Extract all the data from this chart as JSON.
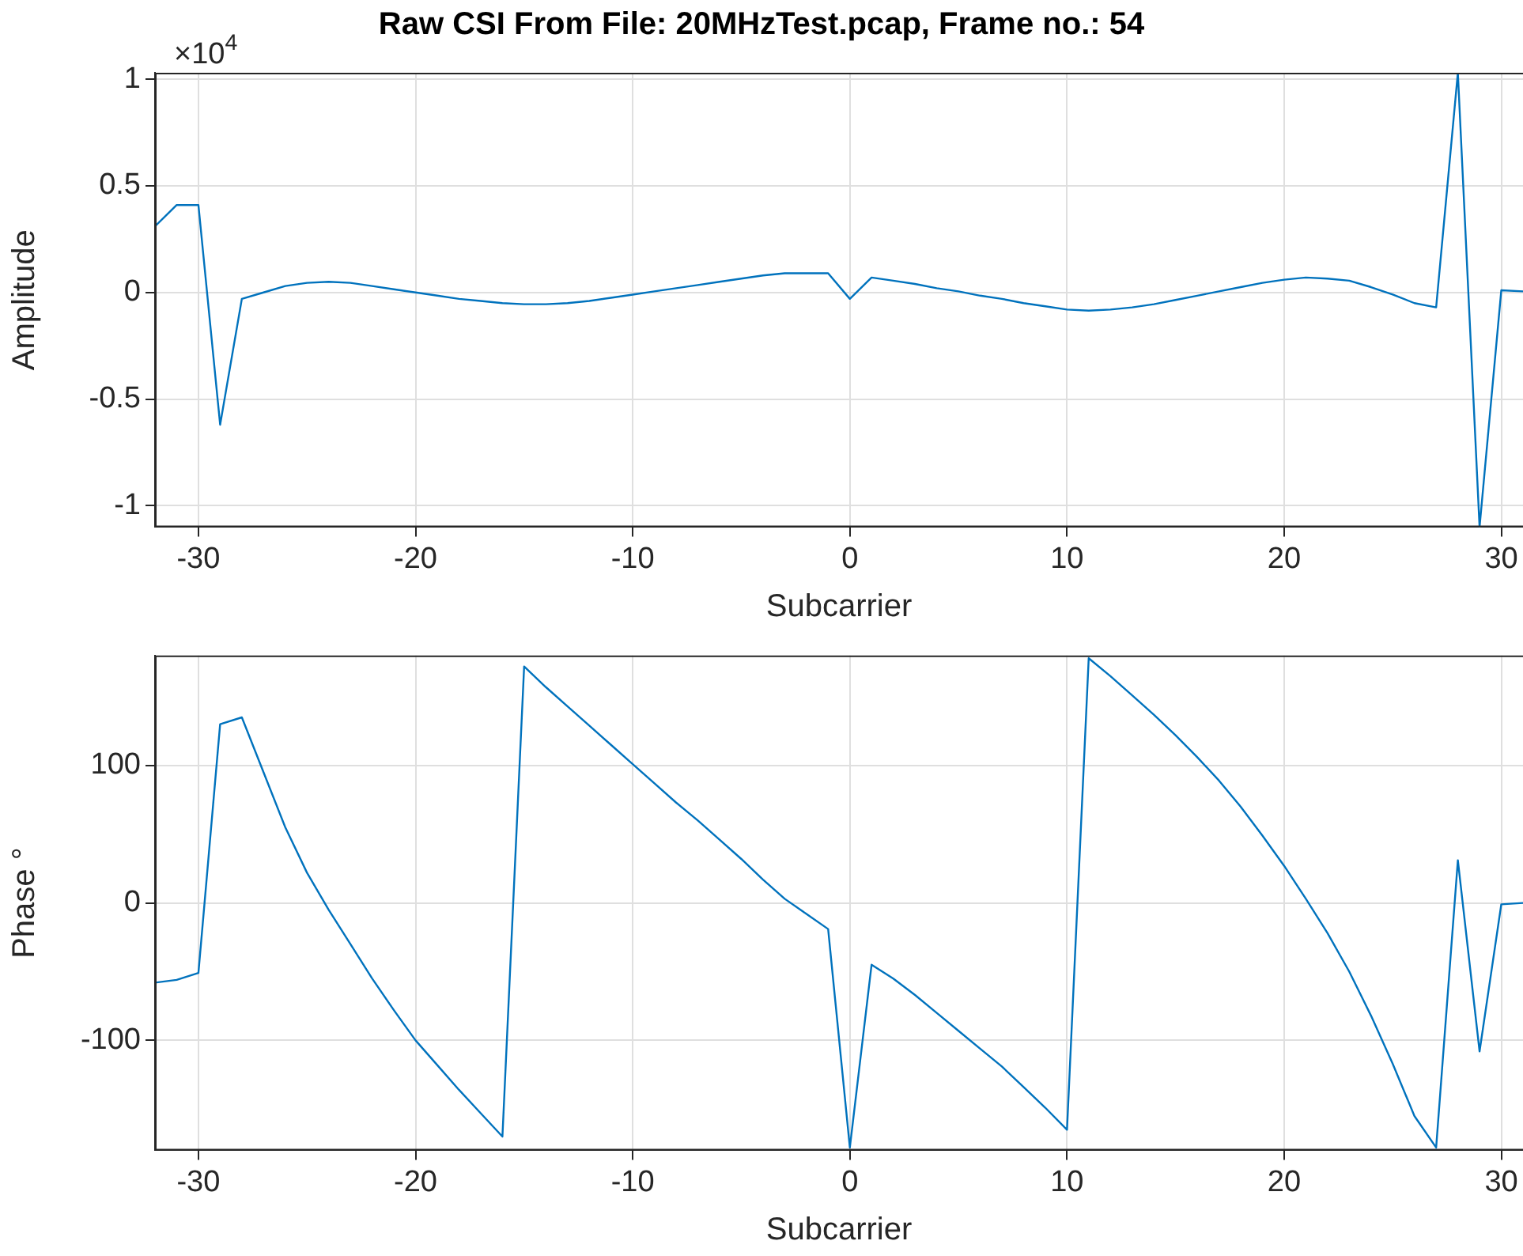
{
  "chart_data": [
    {
      "type": "line",
      "title": "Raw CSI From File: 20MHzTest.pcap, Frame no.: 54",
      "xlabel": "Subcarrier",
      "ylabel": "Amplitude",
      "annotations": [
        "×10$^{4}$"
      ],
      "x": [
        -32,
        -31,
        -30,
        -29,
        -28,
        -27,
        -26,
        -25,
        -24,
        -23,
        -22,
        -21,
        -20,
        -19,
        -18,
        -17,
        -16,
        -15,
        -14,
        -13,
        -12,
        -11,
        -10,
        -9,
        -8,
        -7,
        -6,
        -5,
        -4,
        -3,
        -2,
        -1,
        0,
        1,
        2,
        3,
        4,
        5,
        6,
        7,
        8,
        9,
        10,
        11,
        12,
        13,
        14,
        15,
        16,
        17,
        18,
        19,
        20,
        21,
        22,
        23,
        24,
        25,
        26,
        27,
        28,
        29,
        30,
        31
      ],
      "series": [
        {
          "color": "#0072bd",
          "values": [
            0.31,
            0.41,
            0.41,
            -0.62,
            -0.03,
            0,
            0.03,
            0.045,
            0.05,
            0.045,
            0.03,
            0.015,
            0,
            -0.015,
            -0.03,
            -0.04,
            -0.05,
            -0.055,
            -0.055,
            -0.05,
            -0.04,
            -0.025,
            -0.01,
            0.005,
            0.02,
            0.035,
            0.05,
            0.065,
            0.08,
            0.09,
            0.09,
            0.09,
            -0.03,
            0.07,
            0.055,
            0.04,
            0.02,
            0.005,
            -0.015,
            -0.03,
            -0.05,
            -0.065,
            -0.08,
            -0.085,
            -0.08,
            -0.07,
            -0.055,
            -0.035,
            -0.015,
            0.005,
            0.025,
            0.045,
            0.06,
            0.07,
            0.065,
            0.055,
            0.025,
            -0.01,
            -0.05,
            -0.07,
            1.03,
            -1.1,
            0.01,
            0.005
          ]
        }
      ],
      "xlim": [
        -32,
        31
      ],
      "xticks": [
        -30,
        -20,
        -10,
        0,
        10,
        20,
        30
      ],
      "ylim": [
        -1.1,
        1.03
      ],
      "yticks": [
        -1,
        -0.5,
        0,
        0.5,
        1
      ],
      "grid": true,
      "marker": "none",
      "line_style": "solid"
    },
    {
      "type": "line",
      "xlabel": "Subcarrier",
      "ylabel": "Phase °",
      "x": [
        -32,
        -31,
        -30,
        -29,
        -28,
        -27,
        -26,
        -25,
        -24,
        -23,
        -22,
        -21,
        -20,
        -19,
        -18,
        -17,
        -16,
        -15,
        -14,
        -13,
        -12,
        -11,
        -10,
        -9,
        -8,
        -7,
        -6,
        -5,
        -4,
        -3,
        -2,
        -1,
        0,
        1,
        2,
        3,
        4,
        5,
        6,
        7,
        8,
        9,
        10,
        11,
        12,
        13,
        14,
        15,
        16,
        17,
        18,
        19,
        20,
        21,
        22,
        23,
        24,
        25,
        26,
        27,
        28,
        29,
        30,
        31
      ],
      "series": [
        {
          "color": "#0072bd",
          "values": [
            -58,
            -56,
            -51,
            130,
            135,
            95,
            55,
            22,
            -5,
            -30,
            -55,
            -78,
            -100,
            -118,
            -136,
            -153,
            -170,
            172,
            157,
            143,
            129,
            115,
            101,
            87,
            73,
            60,
            46,
            32,
            17,
            3,
            -8,
            -19,
            -178,
            -45,
            -55,
            -67,
            -80,
            -93,
            -106,
            -119,
            -134,
            -149,
            -165,
            178,
            165,
            151,
            137,
            122,
            106,
            89,
            70,
            49,
            27,
            3,
            -22,
            -50,
            -82,
            -117,
            -155,
            -178,
            31,
            -108,
            -1,
            0
          ]
        }
      ],
      "xlim": [
        -32,
        31
      ],
      "xticks": [
        -30,
        -20,
        -10,
        0,
        10,
        20,
        30
      ],
      "ylim": [
        -180,
        180
      ],
      "yticks": [
        -100,
        0,
        100
      ],
      "grid": true,
      "marker": "none",
      "line_style": "solid"
    }
  ]
}
